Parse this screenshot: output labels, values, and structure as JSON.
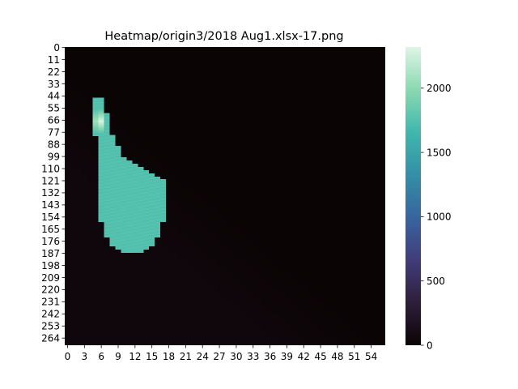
{
  "chart_data": {
    "type": "heatmap",
    "title": "Heatmap/origin3/2018 Aug1.xlsx-17.png",
    "xlabel": "",
    "ylabel": "",
    "columns": 57,
    "rows": 271,
    "x_tick_labels": [
      "0",
      "3",
      "6",
      "9",
      "12",
      "15",
      "18",
      "21",
      "24",
      "27",
      "30",
      "33",
      "36",
      "39",
      "42",
      "45",
      "48",
      "51",
      "54"
    ],
    "y_tick_labels": [
      "0",
      "11",
      "22",
      "33",
      "44",
      "55",
      "66",
      "77",
      "88",
      "99",
      "110",
      "121",
      "132",
      "143",
      "154",
      "165",
      "176",
      "187",
      "198",
      "209",
      "220",
      "231",
      "242",
      "253",
      "264"
    ],
    "value_range": [
      0,
      2320
    ],
    "colorbar_ticks": [
      "0",
      "500",
      "1000",
      "1500",
      "2000"
    ],
    "colormap": "mako",
    "colormap_stops": [
      "#0b0405",
      "#2e1e3b",
      "#413d7b",
      "#37659e",
      "#348fa7",
      "#40b7ad",
      "#8ad9b1",
      "#def5e5"
    ],
    "background_region": {
      "value_min": 0,
      "value_max": 80,
      "description_shape": "low values in lower-left triangle, zero in upper-right"
    },
    "high_region": {
      "value_typical": 1720,
      "value_peak": 2300,
      "row_outline": [
        {
          "row": 46,
          "col_start": 5,
          "col_end": 6
        },
        {
          "row": 60,
          "col_start": 5,
          "col_end": 7
        },
        {
          "row": 80,
          "col_start": 5,
          "col_end": 8
        },
        {
          "row": 100,
          "col_start": 6,
          "col_end": 10
        },
        {
          "row": 112,
          "col_start": 6,
          "col_end": 14
        },
        {
          "row": 120,
          "col_start": 6,
          "col_end": 17
        },
        {
          "row": 140,
          "col_start": 6,
          "col_end": 17
        },
        {
          "row": 158,
          "col_start": 6,
          "col_end": 17
        },
        {
          "row": 172,
          "col_start": 7,
          "col_end": 16
        },
        {
          "row": 180,
          "col_start": 8,
          "col_end": 15
        },
        {
          "row": 186,
          "col_start": 10,
          "col_end": 13
        }
      ],
      "peak_rows": [
        56,
        78
      ],
      "peak_cols": [
        5,
        6
      ]
    }
  }
}
